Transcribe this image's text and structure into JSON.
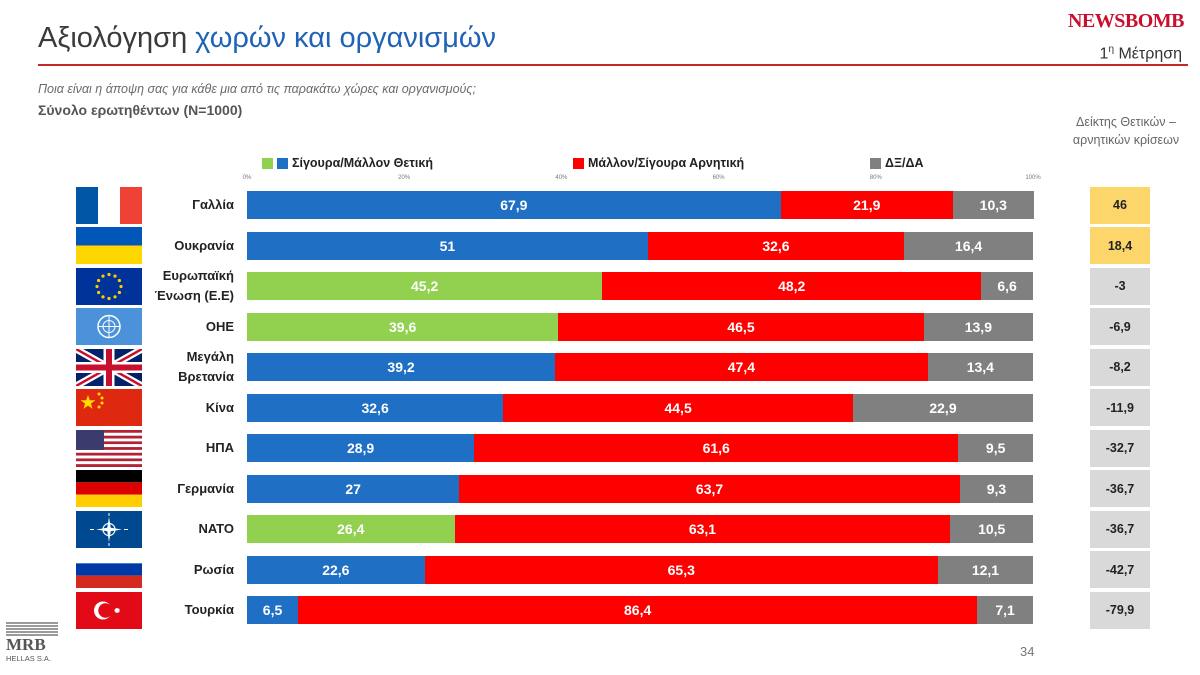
{
  "header": {
    "title_part1": "Αξιολόγηση",
    "title_part2": "χωρών και οργανισμών",
    "brand": "NEWSBOMB",
    "measurement_base": "1",
    "measurement_sup": "η",
    "measurement_rest": " Μέτρηση"
  },
  "question": "Ποια είναι η άποψη σας για κάθε μια από τις παρακάτω χώρες και οργανισμούς;",
  "total_label": "Σύνολο ερωτηθέντων (N=1000)",
  "index_title_1": "Δείκτης Θετικών –",
  "index_title_2": "αρνητικών κρίσεων",
  "page_number": "34",
  "footer_logo": {
    "name": "MRB",
    "sub": "HELLAS S.A."
  },
  "chart_data": {
    "type": "bar",
    "orientation": "horizontal",
    "stacked": true,
    "xlim": [
      0,
      100
    ],
    "x_tick_labels": [
      "0%",
      "20%",
      "40%",
      "60%",
      "80%",
      "100%"
    ],
    "legend": [
      {
        "label": "Σίγουρα/Μάλλον Θετική",
        "colors": [
          "#92d050",
          "#1f6fc5"
        ]
      },
      {
        "label": "Μάλλον/Σίγουρα Αρνητική",
        "colors": [
          "#ff0000"
        ]
      },
      {
        "label": "ΔΞ/ΔΑ",
        "colors": [
          "#808080"
        ]
      }
    ],
    "colors": {
      "positive": "#1f6fc5",
      "positive_org": "#92d050",
      "negative": "#ff0000",
      "dk": "#808080",
      "index_pos": "#fdd66b",
      "index_neg": "#d9d9d9"
    },
    "rows": [
      {
        "label": [
          "Γαλλία"
        ],
        "flag": "france-flag",
        "highlight": false,
        "positive": 67.9,
        "negative": 21.9,
        "dk": 10.3,
        "index": "46"
      },
      {
        "label": [
          "Ουκρανία"
        ],
        "flag": "ukraine-flag",
        "highlight": false,
        "positive": 51,
        "negative": 32.6,
        "dk": 16.4,
        "index": "18,4"
      },
      {
        "label": [
          "Ευρωπαϊκή",
          "Ένωση (Ε.Ε)"
        ],
        "flag": "eu-flag",
        "highlight": true,
        "positive": 45.2,
        "negative": 48.2,
        "dk": 6.6,
        "index": "-3"
      },
      {
        "label": [
          "ΟΗΕ"
        ],
        "flag": "un-flag",
        "highlight": true,
        "positive": 39.6,
        "negative": 46.5,
        "dk": 13.9,
        "index": "-6,9"
      },
      {
        "label": [
          "Μεγάλη",
          "Βρετανία"
        ],
        "flag": "uk-flag",
        "highlight": false,
        "positive": 39.2,
        "negative": 47.4,
        "dk": 13.4,
        "index": "-8,2"
      },
      {
        "label": [
          "Κίνα"
        ],
        "flag": "china-flag",
        "highlight": false,
        "positive": 32.6,
        "negative": 44.5,
        "dk": 22.9,
        "index": "-11,9"
      },
      {
        "label": [
          "ΗΠΑ"
        ],
        "flag": "usa-flag",
        "highlight": false,
        "positive": 28.9,
        "negative": 61.6,
        "dk": 9.5,
        "index": "-32,7"
      },
      {
        "label": [
          "Γερμανία"
        ],
        "flag": "germany-flag",
        "highlight": false,
        "positive": 27,
        "negative": 63.7,
        "dk": 9.3,
        "index": "-36,7"
      },
      {
        "label": [
          "ΝΑΤΟ"
        ],
        "flag": "nato-flag",
        "highlight": true,
        "positive": 26.4,
        "negative": 63.1,
        "dk": 10.5,
        "index": "-36,7"
      },
      {
        "label": [
          "Ρωσία"
        ],
        "flag": "russia-flag",
        "highlight": false,
        "positive": 22.6,
        "negative": 65.3,
        "dk": 12.1,
        "index": "-42,7"
      },
      {
        "label": [
          "Τουρκία"
        ],
        "flag": "turkey-flag",
        "highlight": false,
        "positive": 6.5,
        "negative": 86.4,
        "dk": 7.1,
        "index": "-79,9"
      }
    ]
  }
}
